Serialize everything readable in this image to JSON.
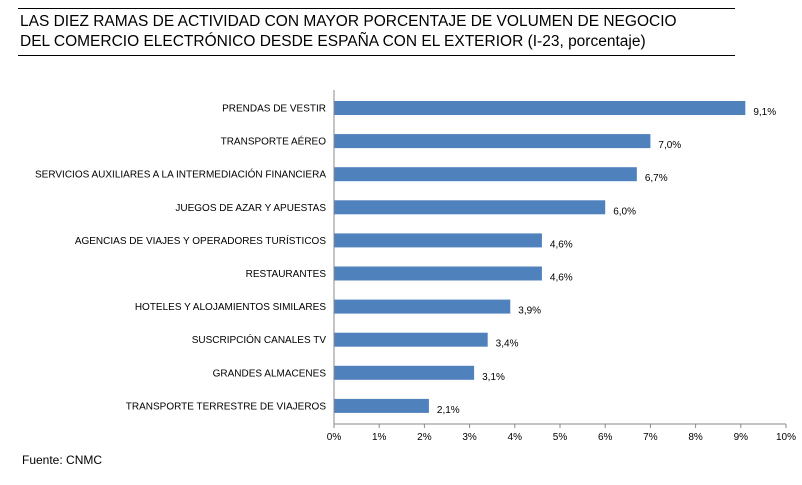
{
  "title_lines": [
    "LAS DIEZ RAMAS DE ACTIVIDAD CON MAYOR PORCENTAJE DE VOLUMEN DE NEGOCIO",
    "DEL COMERCIO ELECTRÓNICO DESDE ESPAÑA CON EL EXTERIOR (I-23, porcentaje)"
  ],
  "source": "Fuente: CNMC",
  "chart_data": {
    "type": "bar",
    "orientation": "horizontal",
    "title": "LAS DIEZ RAMAS DE ACTIVIDAD CON MAYOR PORCENTAJE DE VOLUMEN DE NEGOCIO DEL COMERCIO ELECTRÓNICO DESDE ESPAÑA CON EL EXTERIOR (I-23, porcentaje)",
    "categories": [
      "PRENDAS DE VESTIR",
      "TRANSPORTE AÉREO",
      "SERVICIOS AUXILIARES A LA INTERMEDIACIÓN FINANCIERA",
      "JUEGOS DE AZAR Y APUESTAS",
      "AGENCIAS DE VIAJES Y OPERADORES TURÍSTICOS",
      "RESTAURANTES",
      "HOTELES  Y ALOJAMIENTOS SIMILARES",
      "SUSCRIPCIÓN CANALES TV",
      "GRANDES ALMACENES",
      "TRANSPORTE TERRESTRE DE VIAJEROS"
    ],
    "values": [
      9.1,
      7.0,
      6.7,
      6.0,
      4.6,
      4.6,
      3.9,
      3.4,
      3.1,
      2.1
    ],
    "value_labels": [
      "9,1%",
      "7,0%",
      "6,7%",
      "6,0%",
      "4,6%",
      "4,6%",
      "3,9%",
      "3,4%",
      "3,1%",
      "2,1%"
    ],
    "xlim": [
      0,
      10
    ],
    "xticks": [
      "0%",
      "1%",
      "2%",
      "3%",
      "4%",
      "5%",
      "6%",
      "7%",
      "8%",
      "9%",
      "10%"
    ],
    "xlabel": "",
    "ylabel": "",
    "grid": false,
    "bar_color": "#4f81bd"
  }
}
